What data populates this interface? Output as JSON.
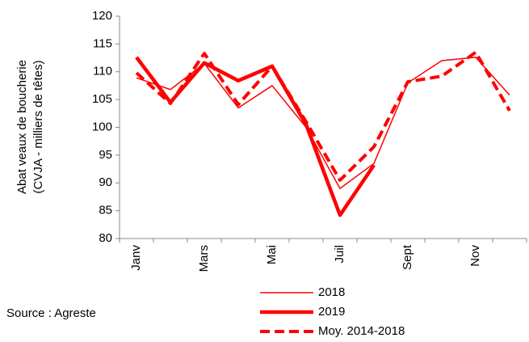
{
  "chart_data": {
    "type": "line",
    "y_label_lines": [
      "Abat veaux de boucherie",
      "(CVJA - milliers de têtes)"
    ],
    "source": "Source : Agreste",
    "categories": [
      "Janv",
      null,
      "Mars",
      null,
      "Mai",
      null,
      "Juil",
      null,
      "Sept",
      null,
      "Nov",
      null
    ],
    "series": [
      {
        "name": "2018",
        "color": "#ff0000",
        "width": 1.5,
        "style": "solid",
        "values": [
          108.9,
          106.8,
          111.5,
          103.5,
          107.5,
          100,
          89,
          93.5,
          108,
          112,
          112.6,
          105.8
        ]
      },
      {
        "name": "2019",
        "color": "#ff0000",
        "width": 4.5,
        "style": "solid",
        "values": [
          112.6,
          104.5,
          111.6,
          108.4,
          111,
          100.5,
          84.2,
          93.2,
          null,
          null,
          null,
          null
        ]
      },
      {
        "name": "Moy. 2014-2018",
        "color": "#ff0000",
        "width": 4,
        "style": "dashed",
        "values": [
          109.8,
          104.3,
          113.3,
          104.1,
          111,
          101,
          90.5,
          96.5,
          108.2,
          109.2,
          113.5,
          103
        ]
      }
    ],
    "ylim": [
      80,
      120
    ],
    "yticks": [
      80,
      85,
      90,
      95,
      100,
      105,
      110,
      115,
      120
    ],
    "grid": false
  }
}
